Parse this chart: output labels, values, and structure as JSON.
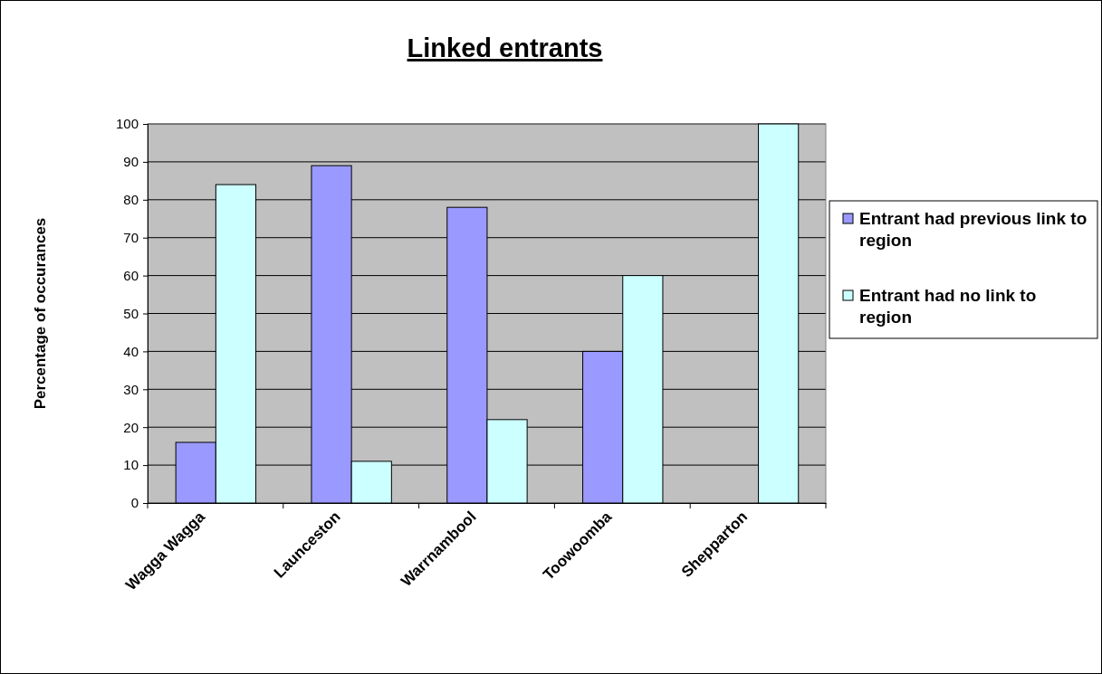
{
  "chart_data": {
    "type": "bar",
    "title": "Linked entrants",
    "ylabel": "Percentage of occurances",
    "categories": [
      "Wagga Wagga",
      "Launceston",
      "Warrnambool",
      "Toowoomba",
      "Shepparton"
    ],
    "series": [
      {
        "name": "Entrant had previous link to region",
        "color": "#9999ff",
        "values": [
          16,
          89,
          78,
          40,
          0
        ]
      },
      {
        "name": "Entrant had no link to region",
        "color": "#ccffff",
        "values": [
          84,
          11,
          22,
          60,
          100
        ]
      }
    ],
    "ylim": [
      0,
      100
    ],
    "yticks": [
      0,
      10,
      20,
      30,
      40,
      50,
      60,
      70,
      80,
      90,
      100
    ],
    "grid": "y",
    "legend": "right"
  }
}
